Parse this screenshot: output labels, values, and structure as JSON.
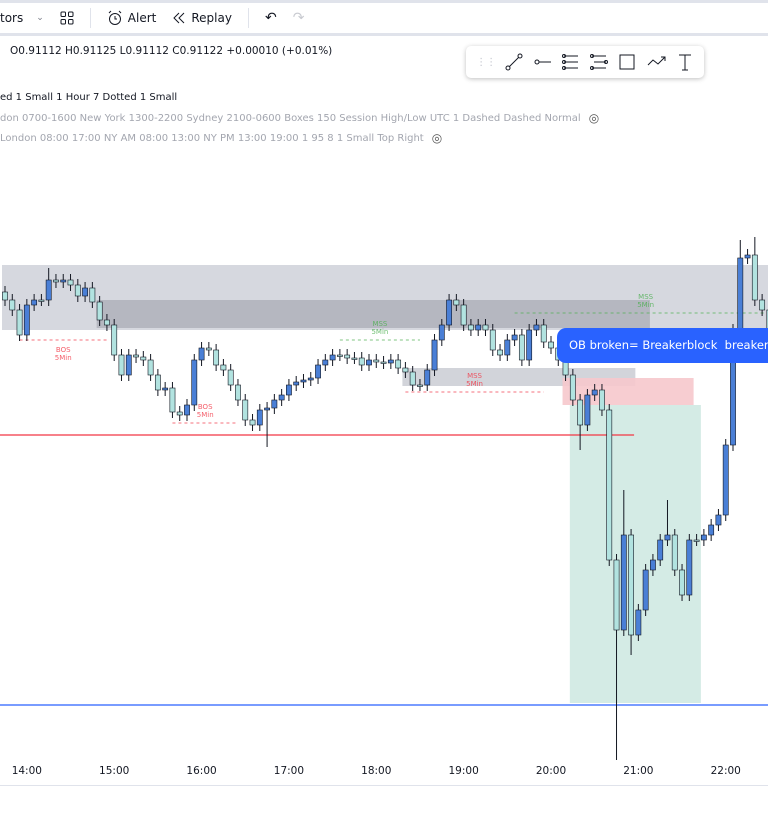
{
  "toolbar": {
    "indicators_label": "tors",
    "alert_label": "Alert",
    "replay_label": "Replay"
  },
  "legend": {
    "ohlc": "O0.91112 H0.91125 L0.91112 C0.91122 +0.00010 (+0.01%)",
    "line1": "ed 1 Small 1 Hour 7 Dotted 1 Small",
    "line2": "don 0700-1600 New York 1300-2200 Sydney 2100-0600 Boxes 150 Session High/Low UTC 1 Dashed Dashed Normal",
    "line3": "London 08:00 17:00 NY AM 08:00 13:00 NY PM 13:00 19:00 1 95 8 1 Small Top Right"
  },
  "drawing_tools": [
    "trend-line",
    "horizontal-ray",
    "parallel-channel",
    "fib-retracement",
    "rectangle",
    "path",
    "text"
  ],
  "callout": "OB broken= Breakerblock  breaker",
  "colors": {
    "bull": "#4a7fd6",
    "bear": "#b2e3e0",
    "red": "#f23645",
    "blue": "#2962ff",
    "green": "#4caf50"
  },
  "chart_data": {
    "type": "candlestick",
    "interval": "5m",
    "start_index_for_14_00": 3,
    "x_ticks": [
      "14:00",
      "15:00",
      "16:00",
      "17:00",
      "18:00",
      "19:00",
      "20:00",
      "21:00",
      "22:00"
    ],
    "closes": [
      500,
      490,
      465,
      495,
      500,
      500,
      520,
      518,
      520,
      515,
      504,
      512,
      498,
      480,
      475,
      445,
      425,
      445,
      443,
      440,
      425,
      410,
      412,
      388,
      385,
      395,
      440,
      452,
      450,
      435,
      430,
      415,
      400,
      380,
      375,
      390,
      392,
      400,
      405,
      415,
      418,
      420,
      422,
      435,
      440,
      445,
      445,
      442,
      442,
      435,
      440,
      438,
      437,
      440,
      432,
      428,
      415,
      415,
      430,
      460,
      475,
      500,
      495,
      475,
      470,
      475,
      470,
      450,
      445,
      460,
      465,
      440,
      470,
      475,
      458,
      452,
      440,
      425,
      400,
      375,
      405,
      410,
      390,
      240,
      170,
      265,
      165,
      190,
      230,
      240,
      260,
      265,
      230,
      205,
      260,
      260,
      265,
      275,
      285,
      355,
      470,
      542,
      545,
      500,
      490,
      460,
      470,
      420,
      390
    ],
    "extreme_wicks": [
      {
        "i": 6,
        "high": 532
      },
      {
        "i": 36,
        "low": 353
      },
      {
        "i": 79,
        "low": 350
      },
      {
        "i": 84,
        "low": 40
      },
      {
        "i": 85,
        "high": 310
      },
      {
        "i": 86,
        "low": 145
      },
      {
        "i": 91,
        "high": 300
      },
      {
        "i": 101,
        "high": 560
      },
      {
        "i": 103,
        "high": 563
      }
    ],
    "zones": [
      {
        "kind": "range",
        "from": 0,
        "to": 106,
        "top": 535,
        "bottom": 470,
        "color": "#d1d4dc"
      },
      {
        "kind": "ob",
        "from": 13,
        "to": 89,
        "top": 500,
        "bottom": 472,
        "color": "#a9acb5"
      },
      {
        "kind": "ob",
        "from": 55,
        "to": 87,
        "top": 432,
        "bottom": 414,
        "color": "#c3c6ce"
      },
      {
        "kind": "breaker",
        "from": 77,
        "to": 95,
        "top": 422,
        "bottom": 395,
        "color": "#f6c8cc"
      },
      {
        "kind": "target",
        "from": 78,
        "to": 96,
        "top": 395,
        "bottom": 97,
        "color": "#cfe9e2"
      }
    ],
    "levels": [
      {
        "price": 365,
        "from": 0,
        "to": 86,
        "color": "#f23645"
      },
      {
        "price": 95,
        "from": 0,
        "to": 106,
        "color": "#2962ff"
      }
    ],
    "structure": [
      {
        "label": "BOS",
        "sub": "5Min",
        "price": 460,
        "from": 2,
        "to": 14,
        "color": "#f23645"
      },
      {
        "label": "MSS",
        "sub": "5Min",
        "price": 460,
        "from": 46,
        "to": 57,
        "color": "#4caf50"
      },
      {
        "label": "BOS",
        "sub": "5Min",
        "price": 377,
        "from": 23,
        "to": 32,
        "color": "#f23645"
      },
      {
        "label": "MSS",
        "sub": "5Min",
        "price": 408,
        "from": 55,
        "to": 74,
        "color": "#f23645"
      },
      {
        "label": "MSS",
        "sub": "5Min",
        "price": 487,
        "from": 70,
        "to": 106,
        "color": "#4caf50"
      }
    ]
  }
}
